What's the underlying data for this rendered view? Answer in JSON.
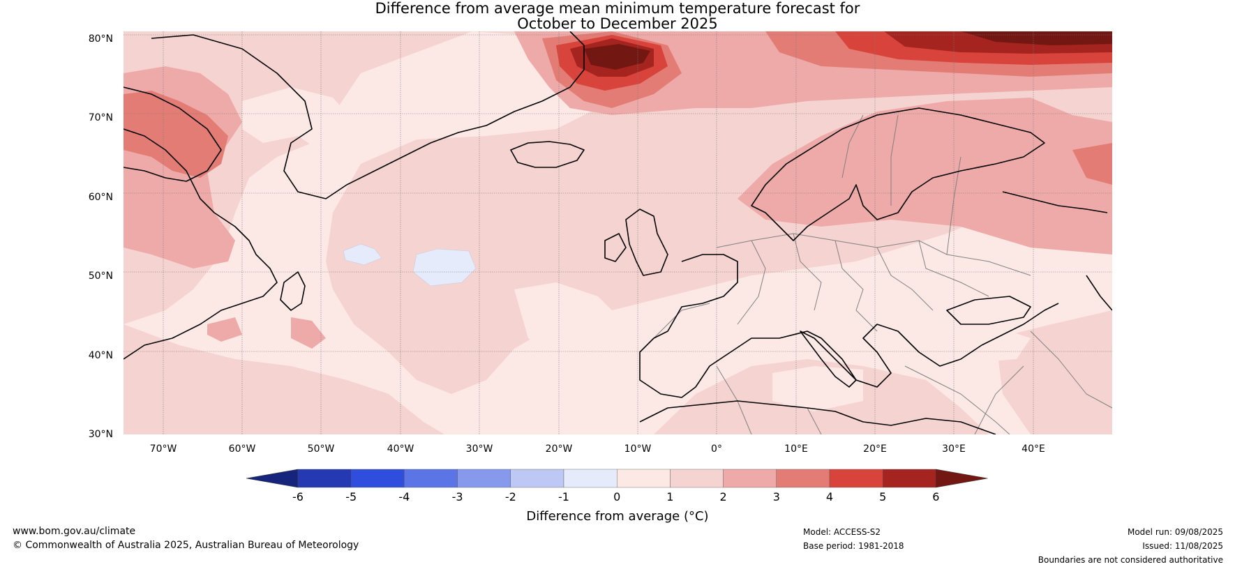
{
  "title": {
    "line1": "Difference from average mean minimum temperature forecast for",
    "line2": "October to December 2025"
  },
  "map": {
    "lat_labels": [
      "80°N",
      "70°N",
      "60°N",
      "50°N",
      "40°N",
      "30°N"
    ],
    "lon_labels": [
      "70°W",
      "60°W",
      "50°W",
      "40°W",
      "30°W",
      "20°W",
      "10°W",
      "0°",
      "10°E",
      "20°E",
      "30°E",
      "40°E"
    ],
    "extent": {
      "lon_min": -75,
      "lon_max": 50,
      "lat_min": 30,
      "lat_max": 81
    },
    "land_outline_color": "#000000",
    "border_color": "#808080"
  },
  "colorbar": {
    "ticks": [
      "-6",
      "-5",
      "-4",
      "-3",
      "-2",
      "-1",
      "0",
      "1",
      "2",
      "3",
      "4",
      "5",
      "6"
    ],
    "colors": [
      "#16247c",
      "#2539b3",
      "#2f4ede",
      "#5b75e6",
      "#8699ec",
      "#bec8f4",
      "#e6ebfb",
      "#fce9e6",
      "#f5d3d1",
      "#eeaaa8",
      "#e37c74",
      "#d8443b",
      "#a5241f",
      "#731712"
    ],
    "label": "Difference from average (°C)"
  },
  "footer": {
    "website": "www.bom.gov.au/climate",
    "copyright": "© Commonwealth of Australia 2025, Australian Bureau of Meteorology",
    "model": "Model: ACCESS-S2",
    "base_period": "Base period: 1981-2018",
    "model_run": "Model run: 09/08/2025",
    "issued": "Issued: 11/08/2025",
    "disclaimer": "Boundaries are not considered authoritative"
  }
}
